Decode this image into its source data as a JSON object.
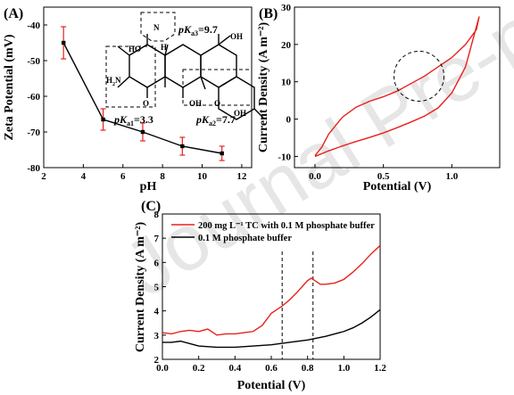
{
  "watermark": "Journal Pre-proofs",
  "chart_data": [
    {
      "panel": "(A)",
      "type": "line",
      "xlabel": "pH",
      "ylabel": "Zeta Potential (mV)",
      "xlim": [
        2,
        12.5
      ],
      "ylim": [
        -80,
        -35
      ],
      "xticks": [
        2,
        4,
        6,
        8,
        10,
        12
      ],
      "yticks": [
        -80,
        -70,
        -60,
        -50,
        -40
      ],
      "x": [
        3,
        5,
        7,
        9,
        11
      ],
      "y": [
        -45,
        -66.5,
        -70,
        -74,
        -76
      ],
      "error": [
        4.5,
        3,
        2.5,
        2.5,
        2
      ],
      "line_color": "#000000",
      "error_color": "#e8211a",
      "annotations": {
        "pka1": "pK",
        "pka1_sub": "a1",
        "pka1_val": "=3.3",
        "pka2": "pK",
        "pka2_sub": "a2",
        "pka2_val": "=7.7",
        "pka3": "pK",
        "pka3_sub": "a3",
        "pka3_val": "=9.7"
      },
      "molecule_labels": {
        "n": "N",
        "ho": "HO",
        "h2n": "H",
        "h2n_sub": "2",
        "h2n_n": "N",
        "o1": "O",
        "oh1": "OH",
        "o2": "O",
        "oh2": "OH",
        "oh3": "OH",
        "h": "H"
      }
    },
    {
      "panel": "(B)",
      "type": "line",
      "xlabel": "Potential (V)",
      "ylabel": "Current Density (A m⁻²)",
      "xlim": [
        -0.15,
        1.35
      ],
      "ylim": [
        -13,
        30
      ],
      "xticks": [
        0.0,
        0.5,
        1.0
      ],
      "xtick_labels": [
        "0.0",
        "0.5",
        "1.0"
      ],
      "yticks": [
        -10,
        0,
        10,
        20,
        30
      ],
      "series": [
        {
          "color": "#e8211a",
          "x": [
            0.0,
            0.1,
            0.2,
            0.3,
            0.4,
            0.5,
            0.6,
            0.7,
            0.8,
            0.9,
            1.0,
            1.1,
            1.2,
            1.18,
            1.1,
            1.0,
            0.9,
            0.8,
            0.7,
            0.6,
            0.5,
            0.4,
            0.3,
            0.2,
            0.1,
            0.05,
            0.0
          ],
          "y": [
            -10,
            -8.5,
            -7.2,
            -6.0,
            -4.9,
            -3.7,
            -2.3,
            -0.8,
            0.8,
            3.0,
            7.0,
            14.0,
            27.5,
            24.0,
            20.0,
            16.5,
            14.0,
            11.5,
            9.5,
            7.5,
            6.0,
            4.8,
            3.2,
            0.5,
            -4.0,
            -7.5,
            -9.8
          ]
        }
      ],
      "highlight_circle": {
        "x": 0.76,
        "y": 11.5
      }
    },
    {
      "panel": "(C)",
      "type": "line",
      "xlabel": "Potential (V)",
      "ylabel": "Current Density (A m⁻²)",
      "xlim": [
        0.0,
        1.2
      ],
      "ylim": [
        2,
        8
      ],
      "xticks": [
        0.0,
        0.2,
        0.4,
        0.6,
        0.8,
        1.0,
        1.2
      ],
      "xtick_labels": [
        "0.0",
        "0.2",
        "0.4",
        "0.6",
        "0.8",
        "1.0",
        "1.2"
      ],
      "yticks": [
        2,
        3,
        4,
        5,
        6,
        7,
        8
      ],
      "vlines": [
        0.66,
        0.83
      ],
      "series": [
        {
          "name": "200 mg L⁻¹ TC with 0.1 M phosphate buffer",
          "color": "#e8211a",
          "x": [
            0.0,
            0.05,
            0.1,
            0.15,
            0.2,
            0.25,
            0.3,
            0.35,
            0.4,
            0.45,
            0.5,
            0.55,
            0.6,
            0.63,
            0.66,
            0.7,
            0.74,
            0.77,
            0.8,
            0.82,
            0.84,
            0.87,
            0.9,
            0.95,
            1.0,
            1.05,
            1.1,
            1.15,
            1.2
          ],
          "y": [
            3.1,
            3.05,
            3.15,
            3.2,
            3.15,
            3.25,
            3.0,
            3.05,
            3.05,
            3.1,
            3.15,
            3.4,
            3.9,
            4.05,
            4.2,
            4.45,
            4.75,
            5.0,
            5.25,
            5.35,
            5.25,
            5.1,
            5.1,
            5.15,
            5.3,
            5.6,
            5.95,
            6.35,
            6.7
          ]
        },
        {
          "name": "0.1 M phosphate buffer",
          "color": "#000000",
          "x": [
            0.0,
            0.05,
            0.1,
            0.15,
            0.2,
            0.3,
            0.4,
            0.5,
            0.6,
            0.7,
            0.8,
            0.9,
            1.0,
            1.05,
            1.1,
            1.15,
            1.2
          ],
          "y": [
            2.7,
            2.7,
            2.75,
            2.65,
            2.55,
            2.5,
            2.5,
            2.55,
            2.6,
            2.7,
            2.8,
            2.95,
            3.15,
            3.3,
            3.5,
            3.75,
            4.05
          ]
        }
      ]
    }
  ]
}
